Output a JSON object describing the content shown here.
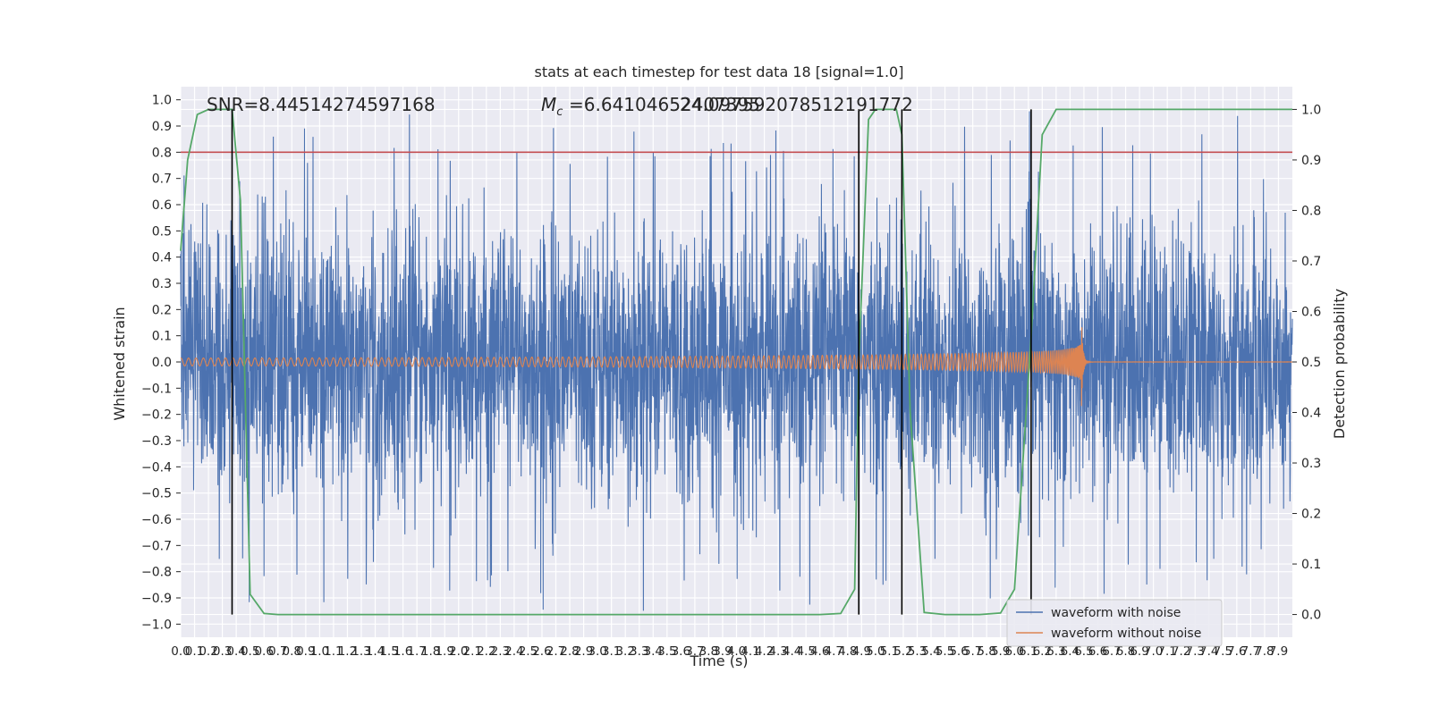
{
  "chart_data": {
    "type": "line",
    "title": "stats at each timestep for test data 18 [signal=1.0]",
    "xlabel": "Time (s)",
    "ylabel": "Whitened strain",
    "y2label": "Detection probability",
    "xlim": [
      0.0,
      8.0
    ],
    "ylim": [
      -1.05,
      1.05
    ],
    "y2lim": [
      -0.045,
      1.045
    ],
    "xticks": [
      "0.0",
      "0.1",
      "0.2",
      "0.3",
      "0.4",
      "0.5",
      "0.6",
      "0.7",
      "0.8",
      "0.9",
      "1.0",
      "1.1",
      "1.2",
      "1.3",
      "1.4",
      "1.5",
      "1.6",
      "1.7",
      "1.8",
      "1.9",
      "2.0",
      "2.1",
      "2.2",
      "2.3",
      "2.4",
      "2.5",
      "2.6",
      "2.7",
      "2.8",
      "2.9",
      "3.0",
      "3.1",
      "3.2",
      "3.3",
      "3.4",
      "3.5",
      "3.6",
      "3.7",
      "3.8",
      "3.9",
      "4.0",
      "4.1",
      "4.2",
      "4.3",
      "4.4",
      "4.5",
      "4.6",
      "4.7",
      "4.8",
      "4.9",
      "5.0",
      "5.1",
      "5.2",
      "5.3",
      "5.4",
      "5.5",
      "5.6",
      "5.7",
      "5.8",
      "5.9",
      "6.0",
      "6.1",
      "6.2",
      "6.3",
      "6.4",
      "6.5",
      "6.6",
      "6.7",
      "6.8",
      "6.9",
      "7.0",
      "7.1",
      "7.2",
      "7.3",
      "7.4",
      "7.5",
      "7.6",
      "7.7",
      "7.8",
      "7.9"
    ],
    "yticks": [
      "1.0",
      "0.9",
      "0.8",
      "0.7",
      "0.6",
      "0.5",
      "0.4",
      "0.3",
      "0.2",
      "0.1",
      "0.0",
      "−0.1",
      "−0.2",
      "−0.3",
      "−0.4",
      "−0.5",
      "−0.6",
      "−0.7",
      "−0.8",
      "−0.9",
      "−1.0"
    ],
    "y2ticks": [
      "1.0",
      "0.9",
      "0.8",
      "0.7",
      "0.6",
      "0.5",
      "0.4",
      "0.3",
      "0.2",
      "0.1",
      "0.0"
    ],
    "annotations": {
      "snr": "SNR=8.44514274597168",
      "mc_prefix": "=6.64104652407395",
      "mc_overlap": "24.097592078512191772"
    },
    "threshold": 0.8,
    "vlines": [
      0.37,
      4.88,
      5.19,
      6.12
    ],
    "series": [
      {
        "name": "waveform with noise",
        "color": "#4c72b0",
        "envelope": "noise",
        "amplitude_typical": 0.45,
        "amplitude_peak": 1.0
      },
      {
        "name": "waveform without noise",
        "color": "#dd8452",
        "signal_type": "chirp",
        "merger_time": 6.48,
        "start_amplitude": 0.015,
        "peak_amplitude": 0.21,
        "ringdown_amplitude": 0.005
      }
    ],
    "probability": {
      "color": "#55a868",
      "x": [
        0.0,
        0.05,
        0.12,
        0.2,
        0.3,
        0.37,
        0.43,
        0.5,
        0.6,
        0.7,
        0.8,
        4.6,
        4.75,
        4.85,
        4.88,
        4.95,
        5.0,
        5.15,
        5.19,
        5.25,
        5.35,
        5.5,
        5.75,
        5.9,
        6.0,
        6.12,
        6.2,
        6.3,
        6.5,
        8.0
      ],
      "y": [
        0.72,
        0.9,
        0.99,
        1.0,
        1.0,
        1.0,
        0.82,
        0.04,
        0.002,
        0.0,
        0.0,
        0.0,
        0.002,
        0.05,
        0.5,
        0.98,
        1.0,
        1.0,
        0.95,
        0.4,
        0.004,
        0.0,
        0.0,
        0.003,
        0.05,
        0.55,
        0.95,
        1.0,
        1.0,
        1.0
      ]
    },
    "legend": "lower-right",
    "grid": true
  }
}
